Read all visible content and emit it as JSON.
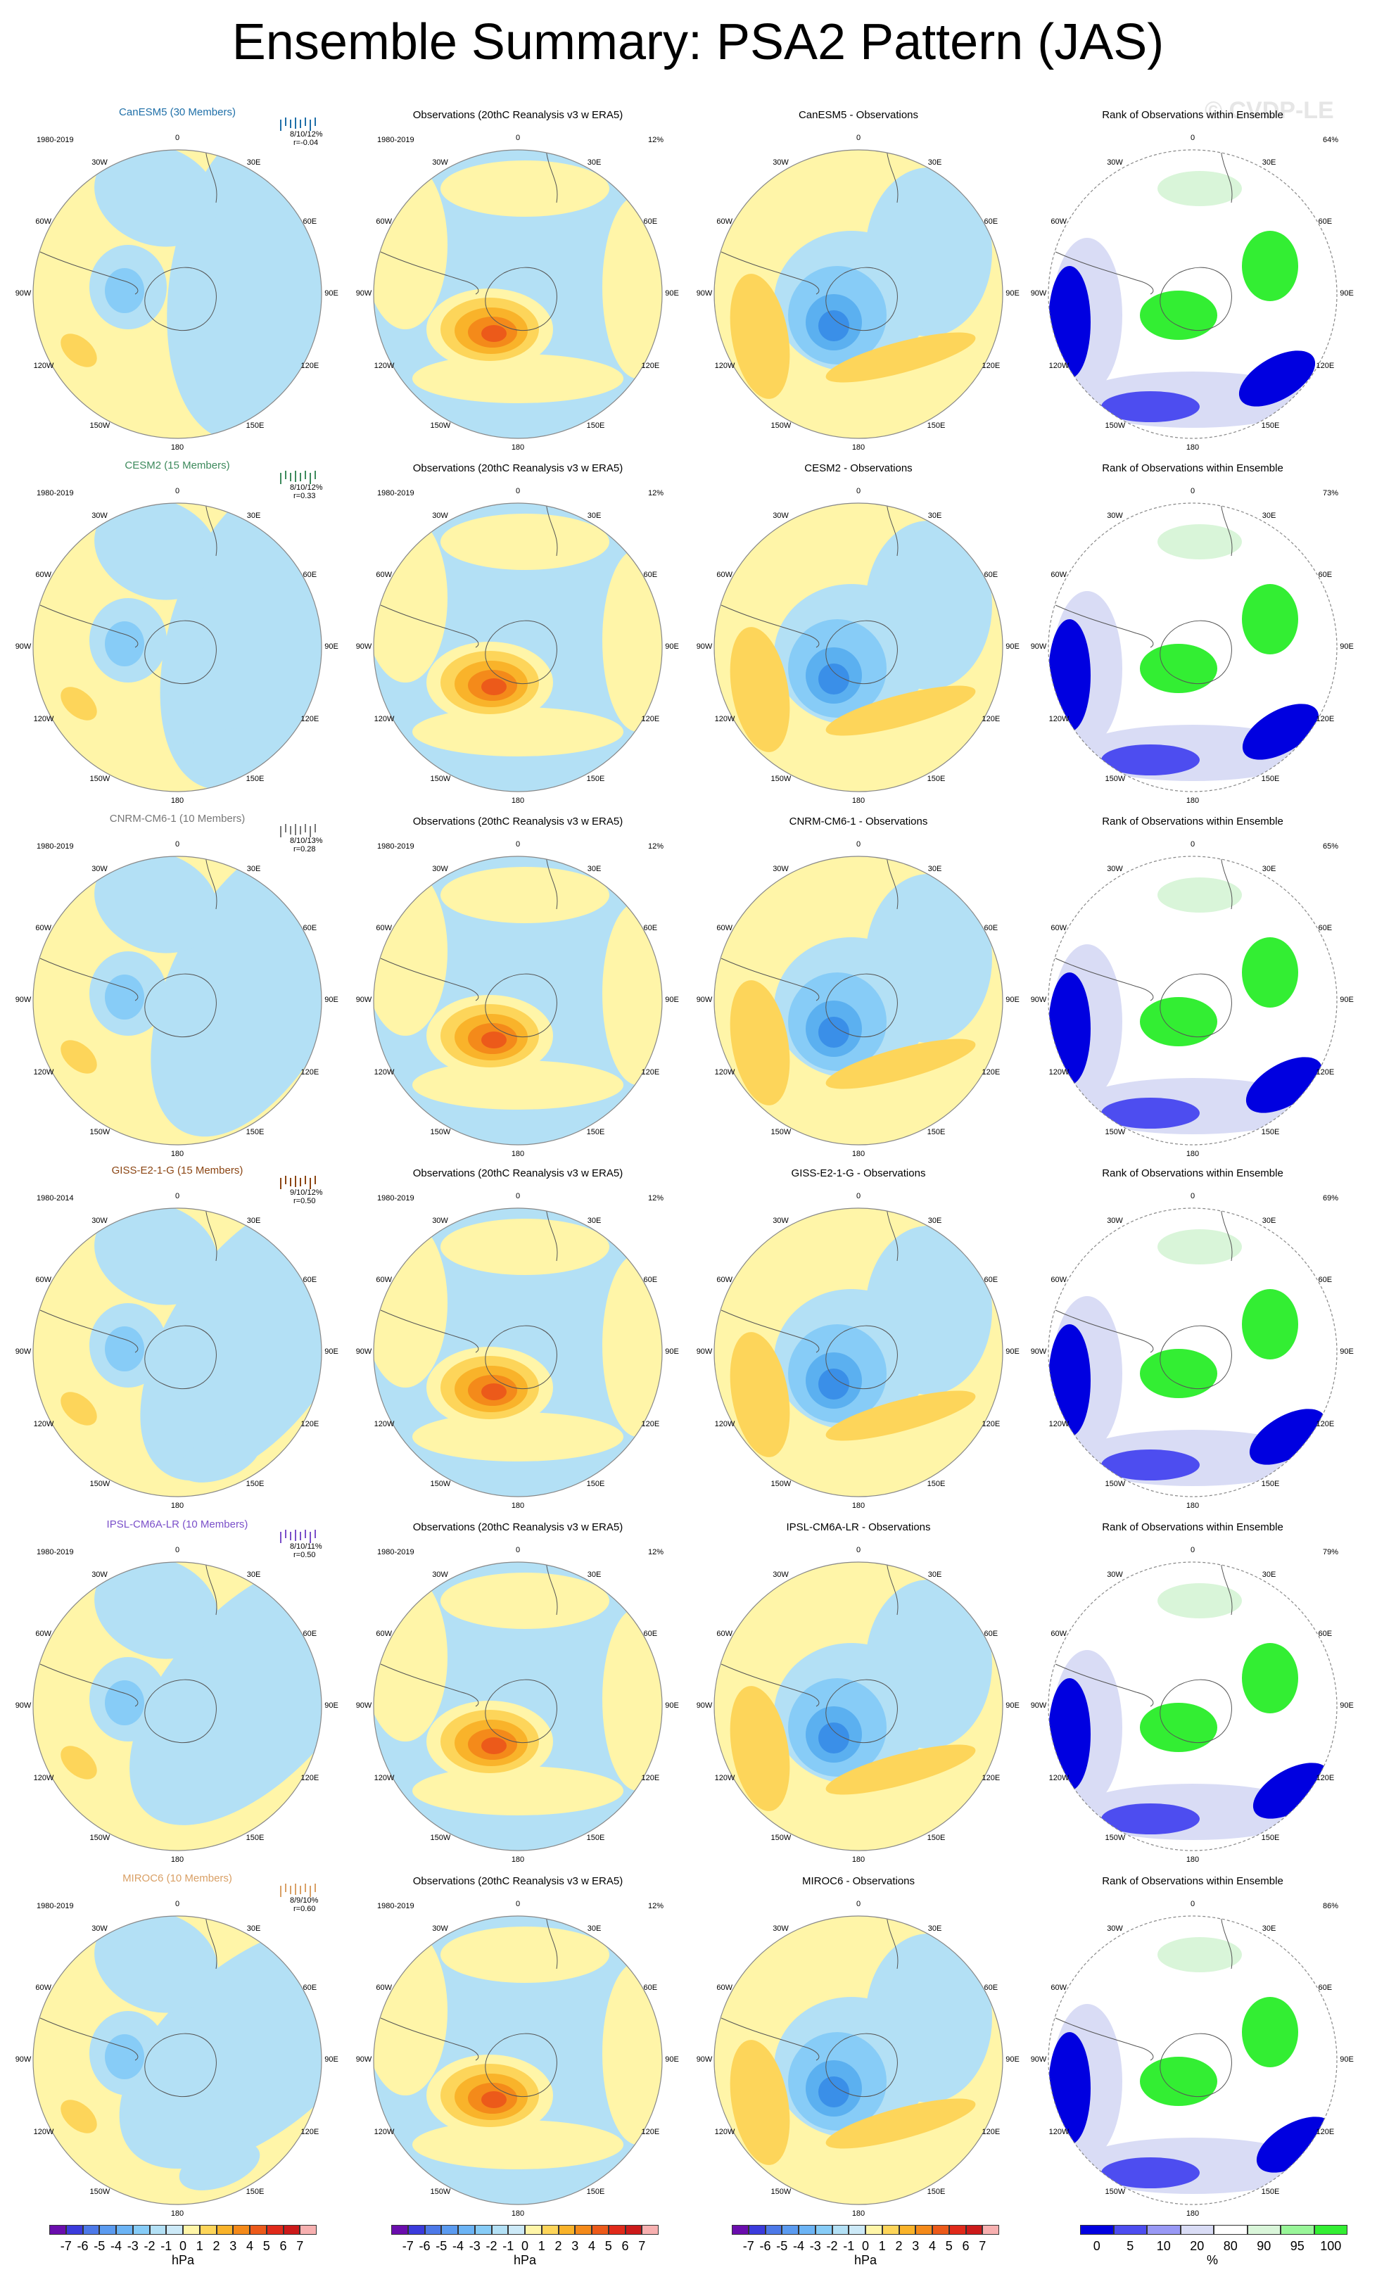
{
  "title": "Ensemble Summary: PSA2 Pattern (JAS)",
  "watermark": "© CVDP-LE",
  "obs_title": "Observations (20thC Reanalysis v3 w ERA5)",
  "rank_title": "Rank of Observations within Ensemble",
  "obs_period": "1980-2019",
  "obs_pct": "12%",
  "lon_labels": [
    "0",
    "30E",
    "60E",
    "90E",
    "120E",
    "150E",
    "180",
    "150W",
    "120W",
    "90W",
    "60W",
    "30W"
  ],
  "rows": [
    {
      "model_title": "CanESM5 (30 Members)",
      "color": "#1f6fa8",
      "period": "1980-2019",
      "stats": "8/10/12%",
      "corr": "r=-0.04",
      "diff_title": "CanESM5 - Observations",
      "rank_pct": "64%"
    },
    {
      "model_title": "CESM2 (15 Members)",
      "color": "#3d8a5c",
      "period": "1980-2019",
      "stats": "8/10/12%",
      "corr": "r=0.33",
      "diff_title": "CESM2 - Observations",
      "rank_pct": "73%"
    },
    {
      "model_title": "CNRM-CM6-1 (10 Members)",
      "color": "#777777",
      "period": "1980-2019",
      "stats": "8/10/13%",
      "corr": "r=0.28",
      "diff_title": "CNRM-CM6-1 - Observations",
      "rank_pct": "65%"
    },
    {
      "model_title": "GISS-E2-1-G (15 Members)",
      "color": "#8b4513",
      "period": "1980-2014",
      "stats": "9/10/12%",
      "corr": "r=0.50",
      "diff_title": "GISS-E2-1-G - Observations",
      "rank_pct": "69%"
    },
    {
      "model_title": "IPSL-CM6A-LR (10 Members)",
      "color": "#7a4fc9",
      "period": "1980-2019",
      "stats": "8/10/11%",
      "corr": "r=0.50",
      "diff_title": "IPSL-CM6A-LR - Observations",
      "rank_pct": "79%"
    },
    {
      "model_title": "MIROC6 (10 Members)",
      "color": "#d9a066",
      "period": "1980-2019",
      "stats": "8/9/10%",
      "corr": "r=0.60",
      "diff_title": "MIROC6 - Observations",
      "rank_pct": "86%"
    }
  ],
  "colorbar_hpa": {
    "labels": [
      "-7",
      "-6",
      "-5",
      "-4",
      "-3",
      "-2",
      "-1",
      "0",
      "1",
      "2",
      "3",
      "4",
      "5",
      "6",
      "7"
    ],
    "unit": "hPa",
    "colors": [
      "#6a0dad",
      "#3b3bdc",
      "#4d79e8",
      "#5b9bf0",
      "#6cb4f5",
      "#87ccf7",
      "#b3e0f5",
      "#cce9f7",
      "#fff5a8",
      "#fdd55a",
      "#f9b32a",
      "#f48a1a",
      "#ec5a1a",
      "#e02a1a",
      "#cc1a1a",
      "#f7b0b0"
    ]
  },
  "colorbar_rank": {
    "labels": [
      "0",
      "5",
      "10",
      "20",
      "80",
      "90",
      "95",
      "100"
    ],
    "unit": "%",
    "colors": [
      "#0000e0",
      "#4d4df0",
      "#9999f5",
      "#d9dcf5",
      "#ffffff",
      "#d9f5d9",
      "#99f599",
      "#33ee33"
    ]
  }
}
